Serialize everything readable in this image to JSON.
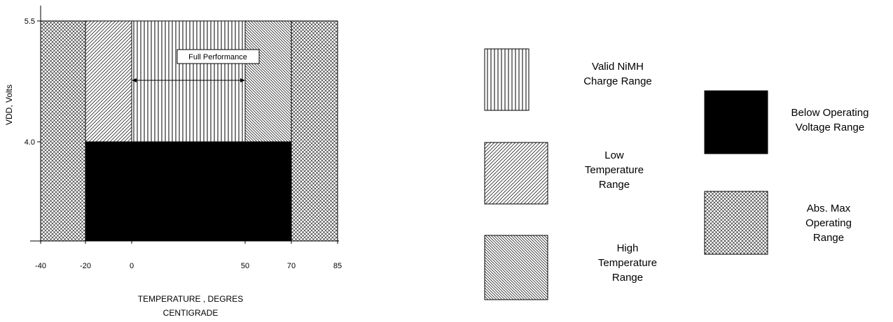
{
  "chart_data": {
    "type": "region",
    "xlabel": "TEMPERATURE , DEGRES\nCENTIGRADE",
    "ylabel": "VDD, Volts",
    "x_ticks": [
      -40,
      -20,
      0,
      50,
      70,
      85
    ],
    "x_tick_labels": [
      "-40",
      "-20",
      "0",
      "50",
      "70",
      "85"
    ],
    "y_ticks": [
      4.0,
      5.5
    ],
    "y_tick_labels": [
      "4.0",
      "5.5"
    ],
    "xlim": [
      -40,
      85
    ],
    "ylim": [
      4.0,
      5.5
    ],
    "annotation": {
      "label": "Full Performance",
      "x_from": 0,
      "x_to": 50
    },
    "regions": [
      {
        "key": "absmax_left",
        "legend": "absmax",
        "x": [
          -40,
          -20
        ],
        "y": [
          4.0,
          5.5
        ]
      },
      {
        "key": "low_temp",
        "legend": "low",
        "x": [
          -20,
          0
        ],
        "y": [
          4.0,
          5.5
        ]
      },
      {
        "key": "nimh",
        "legend": "nimh",
        "x": [
          0,
          50
        ],
        "y": [
          4.0,
          5.5
        ]
      },
      {
        "key": "high_temp",
        "legend": "high",
        "x": [
          50,
          70
        ],
        "y": [
          4.0,
          5.5
        ]
      },
      {
        "key": "absmax_right",
        "legend": "absmax",
        "x": [
          70,
          85
        ],
        "y": [
          4.0,
          5.5
        ]
      },
      {
        "key": "below_op",
        "legend": "below",
        "x": [
          -20,
          70
        ],
        "y": [
          4.0,
          4.0
        ]
      }
    ],
    "legend": [
      {
        "key": "nimh",
        "pattern": "vertical-lines",
        "lines": [
          "Valid NiMH",
          "Charge Range"
        ]
      },
      {
        "key": "low",
        "pattern": "diagonal-forward",
        "lines": [
          "Low",
          "Temperature",
          "Range"
        ]
      },
      {
        "key": "high",
        "pattern": "diagonal-back",
        "lines": [
          "High",
          "Temperature",
          "Range"
        ]
      },
      {
        "key": "below",
        "pattern": "solid-black",
        "lines": [
          "Below Operating",
          "Voltage Range"
        ]
      },
      {
        "key": "absmax",
        "pattern": "crosshatch",
        "lines": [
          "Abs. Max",
          "Operating",
          "Range"
        ]
      }
    ]
  }
}
